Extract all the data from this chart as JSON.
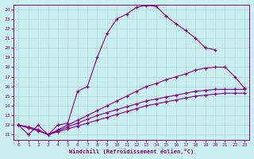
{
  "background_color": "#c8eef0",
  "grid_color": "#b0d8d8",
  "line_color": "#880088",
  "xlabel": "Windchill (Refroidissement éolien,°C)",
  "xlim": [
    -0.5,
    23.5
  ],
  "ylim": [
    10.5,
    24.5
  ],
  "xticks": [
    0,
    1,
    2,
    3,
    4,
    5,
    6,
    7,
    8,
    9,
    10,
    11,
    12,
    13,
    14,
    15,
    16,
    17,
    18,
    19,
    20,
    21,
    22,
    23
  ],
  "yticks": [
    11,
    12,
    13,
    14,
    15,
    16,
    17,
    18,
    19,
    20,
    21,
    22,
    23,
    24
  ],
  "curve1_x": [
    0,
    1,
    2,
    3,
    4,
    5,
    6,
    7,
    8,
    9,
    10,
    11,
    12,
    13,
    14,
    15,
    16,
    17,
    18,
    19,
    20
  ],
  "curve1_y": [
    12,
    11,
    12,
    11,
    12,
    12.2,
    15.5,
    16.0,
    19.0,
    21.5,
    23.0,
    23.5,
    24.2,
    24.4,
    24.3,
    23.3,
    22.5,
    21.8,
    21.0,
    20.0,
    19.8
  ],
  "curve2_x": [
    0,
    1,
    2,
    3,
    4,
    5,
    6,
    7,
    8,
    9,
    10,
    11,
    12,
    13,
    14,
    15,
    16,
    17,
    18,
    19,
    20,
    21,
    22,
    23
  ],
  "curve2_y": [
    12,
    11.8,
    11.5,
    11,
    11.5,
    12.0,
    12.5,
    13.0,
    13.5,
    14.0,
    14.5,
    15.0,
    15.5,
    16.0,
    16.3,
    16.7,
    17.0,
    17.3,
    17.7,
    17.9,
    18.0,
    18.0,
    17.0,
    15.8
  ],
  "curve3_x": [
    0,
    1,
    2,
    3,
    4,
    5,
    6,
    7,
    8,
    9,
    10,
    11,
    12,
    13,
    14,
    15,
    16,
    17,
    18,
    19,
    20,
    21,
    22,
    23
  ],
  "curve3_y": [
    12,
    11.7,
    11.4,
    11,
    11.3,
    11.6,
    11.9,
    12.2,
    12.5,
    12.8,
    13.1,
    13.4,
    13.7,
    14.0,
    14.2,
    14.4,
    14.6,
    14.8,
    15.0,
    15.1,
    15.2,
    15.3,
    15.3,
    15.3
  ],
  "curve4_x": [
    0,
    1,
    2,
    3,
    4,
    5,
    6,
    7,
    8,
    9,
    10,
    11,
    12,
    13,
    14,
    15,
    16,
    17,
    18,
    19,
    20,
    21,
    22,
    23
  ],
  "curve4_y": [
    12,
    11.8,
    11.5,
    11,
    11.4,
    11.8,
    12.2,
    12.6,
    13.0,
    13.3,
    13.6,
    13.9,
    14.2,
    14.5,
    14.7,
    14.9,
    15.1,
    15.3,
    15.5,
    15.6,
    15.7,
    15.7,
    15.7,
    15.7
  ]
}
